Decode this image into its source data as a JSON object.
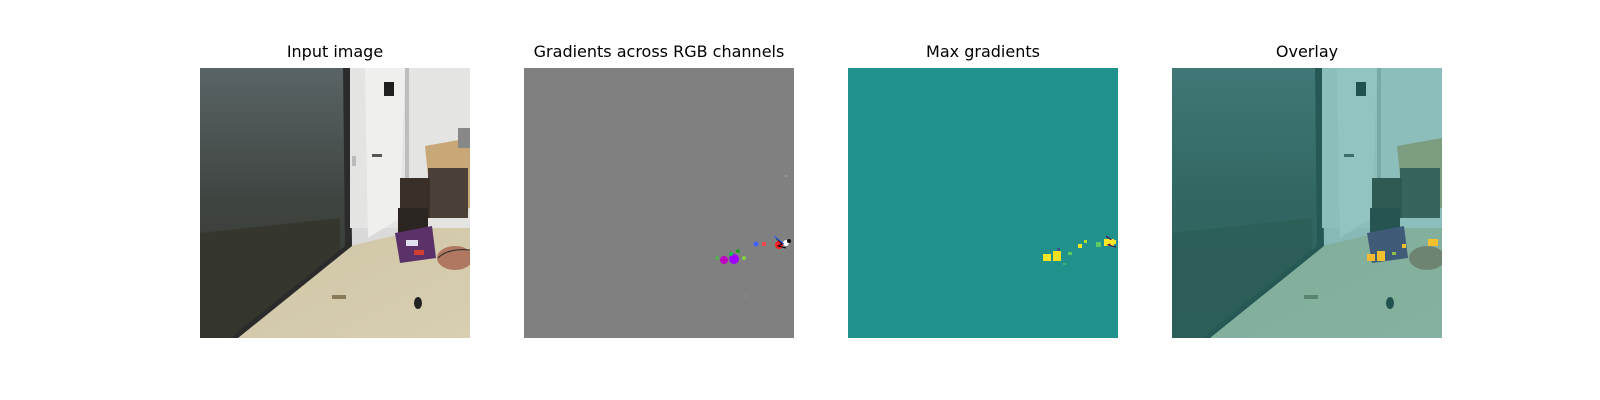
{
  "panels": [
    {
      "title": "Input image"
    },
    {
      "title": "Gradients across RGB channels"
    },
    {
      "title": "Max gradients"
    },
    {
      "title": "Overlay"
    }
  ],
  "colors": {
    "gradient_background": "#808080",
    "max_gradient_background": "#21918c",
    "max_gradient_high": "#fde725",
    "overlay_tint": "#21918c"
  }
}
